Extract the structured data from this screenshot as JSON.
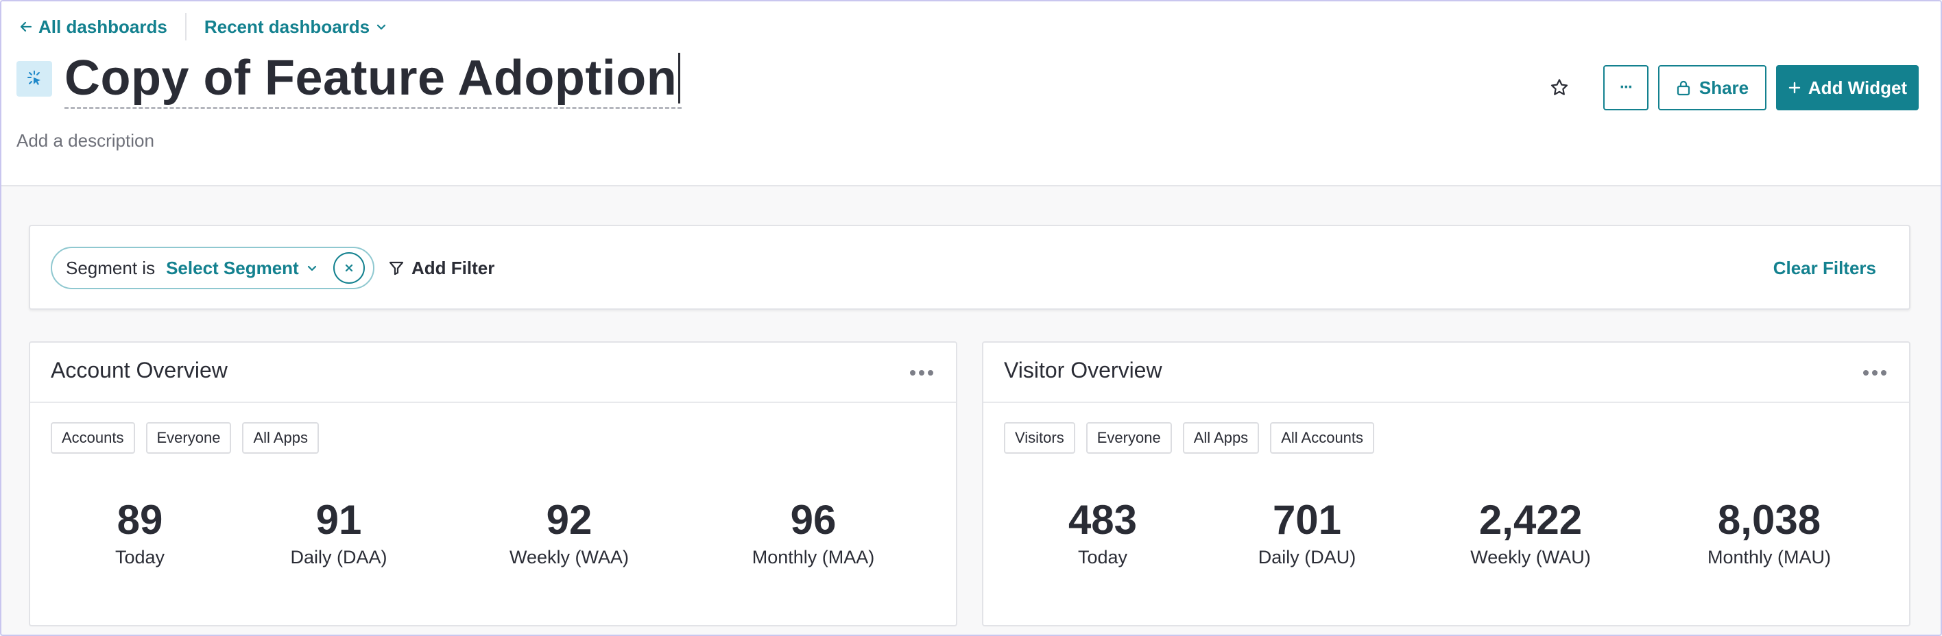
{
  "nav": {
    "back_label": "All dashboards",
    "recent_label": "Recent dashboards"
  },
  "dashboard": {
    "title": "Copy of Feature Adoption",
    "description_placeholder": "Add a description",
    "icon": "cursor-click-icon"
  },
  "actions": {
    "more_label": "···",
    "share_label": "Share",
    "add_widget_label": "Add Widget"
  },
  "filters": {
    "segment_label": "Segment is",
    "segment_value": "Select Segment",
    "add_filter_label": "Add Filter",
    "clear_filters_label": "Clear Filters"
  },
  "widgets": [
    {
      "title": "Account Overview",
      "tags": [
        "Accounts",
        "Everyone",
        "All Apps"
      ],
      "metrics": [
        {
          "value": "89",
          "label": "Today"
        },
        {
          "value": "91",
          "label": "Daily (DAA)"
        },
        {
          "value": "92",
          "label": "Weekly (WAA)"
        },
        {
          "value": "96",
          "label": "Monthly (MAA)"
        }
      ]
    },
    {
      "title": "Visitor Overview",
      "tags": [
        "Visitors",
        "Everyone",
        "All Apps",
        "All Accounts"
      ],
      "metrics": [
        {
          "value": "483",
          "label": "Today"
        },
        {
          "value": "701",
          "label": "Daily (DAU)"
        },
        {
          "value": "2,422",
          "label": "Weekly (WAU)"
        },
        {
          "value": "8,038",
          "label": "Monthly (MAU)"
        }
      ]
    }
  ],
  "colors": {
    "accent": "#13818f",
    "text": "#2a2c35",
    "muted": "#6e7079",
    "icon_bg": "#d4ecf7"
  }
}
